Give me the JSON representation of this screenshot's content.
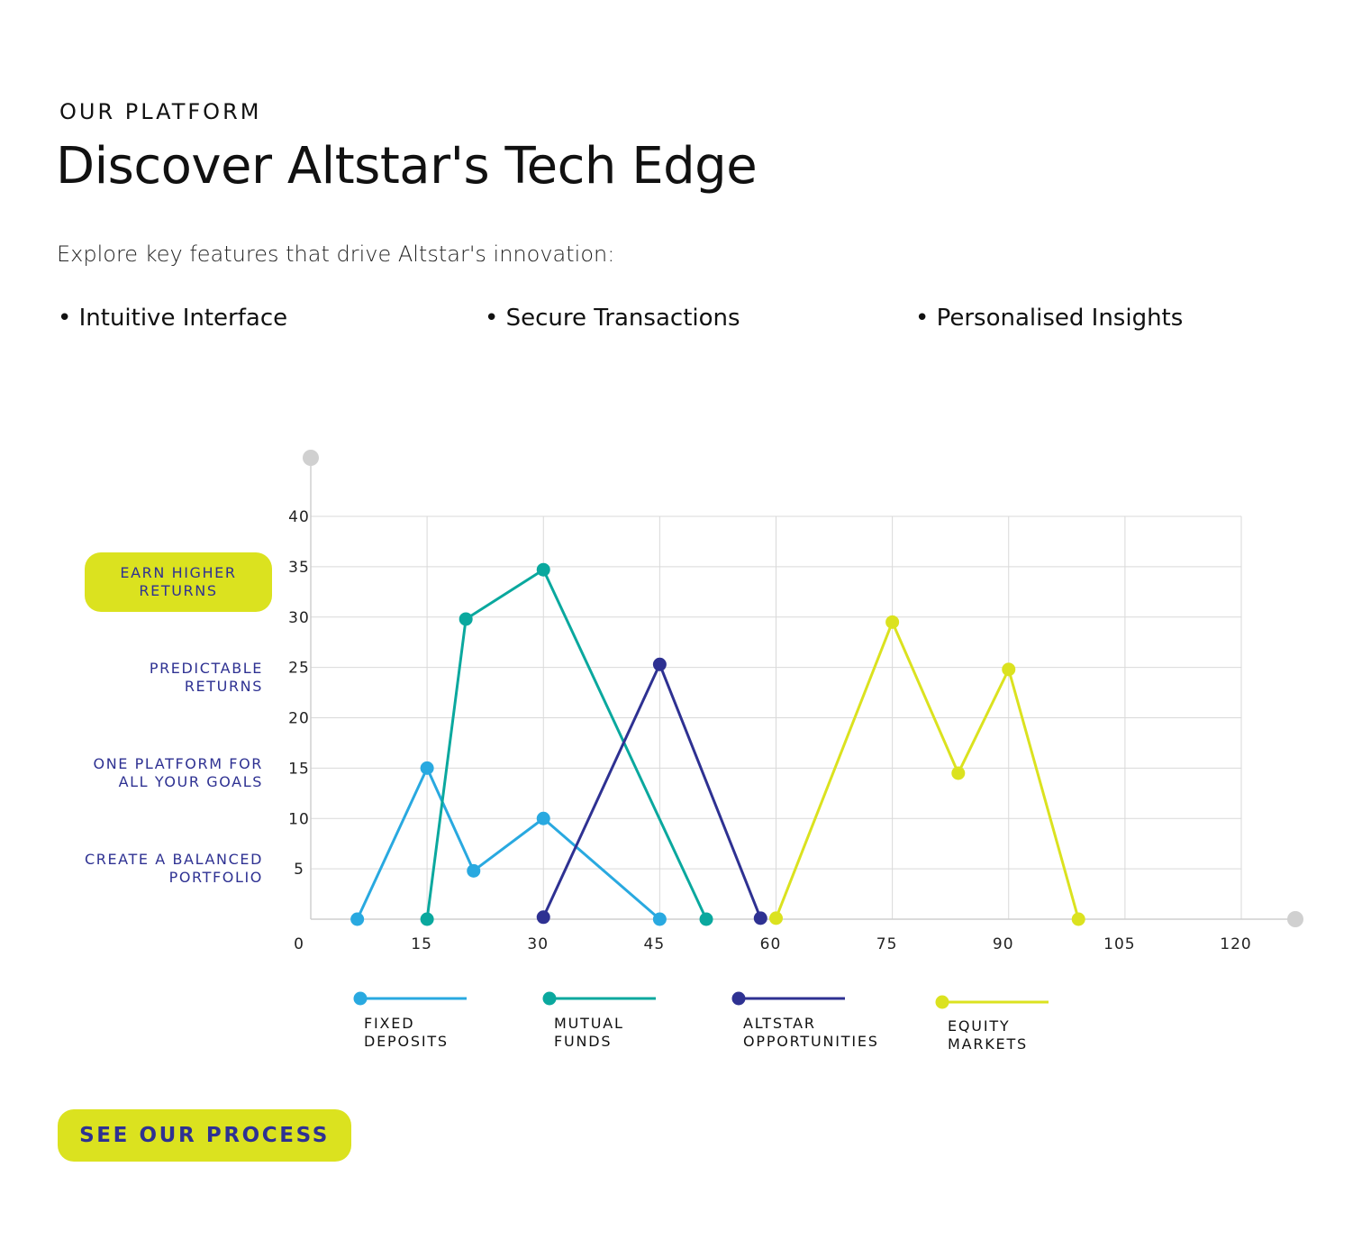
{
  "header": {
    "eyebrow": "OUR PLATFORM",
    "title": "Discover Altstar's Tech Edge",
    "subtitle": "Explore key features that drive Altstar's innovation:"
  },
  "features": [
    "• Intuitive Interface",
    "• Secure Transactions",
    "• Personalised Insights"
  ],
  "cta": {
    "label": "SEE OUR PROCESS"
  },
  "chart_data": {
    "type": "line",
    "title": "",
    "xlabel": "",
    "ylabel": "",
    "xlim": [
      0,
      120
    ],
    "ylim": [
      0,
      40
    ],
    "x_ticks": [
      0,
      15,
      30,
      45,
      60,
      75,
      90,
      105,
      120
    ],
    "y_ticks": [
      5,
      10,
      15,
      20,
      25,
      30,
      35,
      40
    ],
    "grid": true,
    "legend_position": "bottom",
    "y_category_labels": [
      {
        "text": "EARN HIGHER\nRETURNS",
        "y": 33.5,
        "highlighted": true
      },
      {
        "text": "PREDICTABLE\nRETURNS",
        "y": 24,
        "highlighted": false
      },
      {
        "text": "ONE PLATFORM FOR\nALL YOUR GOALS",
        "y": 14.5,
        "highlighted": false
      },
      {
        "text": "CREATE A BALANCED\nPORTFOLIO",
        "y": 5,
        "highlighted": false
      }
    ],
    "series": [
      {
        "name": "FIXED\nDEPOSITS",
        "color": "#29a9e0",
        "points": [
          [
            6,
            0
          ],
          [
            15,
            15
          ],
          [
            21,
            4.8
          ],
          [
            30,
            10
          ],
          [
            45,
            0
          ]
        ]
      },
      {
        "name": "MUTUAL\nFUNDS",
        "color": "#0aa89e",
        "points": [
          [
            15,
            0
          ],
          [
            20,
            29.8
          ],
          [
            30,
            34.7
          ],
          [
            51,
            0
          ]
        ]
      },
      {
        "name": "ALTSTAR\nOPPORTUNITIES",
        "color": "#2e3192",
        "points": [
          [
            30,
            0.2
          ],
          [
            45,
            25.3
          ],
          [
            58,
            0.1
          ]
        ]
      },
      {
        "name": "EQUITY\nMARKETS",
        "color": "#dbe21f",
        "points": [
          [
            60,
            0.1
          ],
          [
            75,
            29.5
          ],
          [
            83.5,
            14.5
          ],
          [
            90,
            24.8
          ],
          [
            99,
            0
          ]
        ]
      }
    ]
  }
}
